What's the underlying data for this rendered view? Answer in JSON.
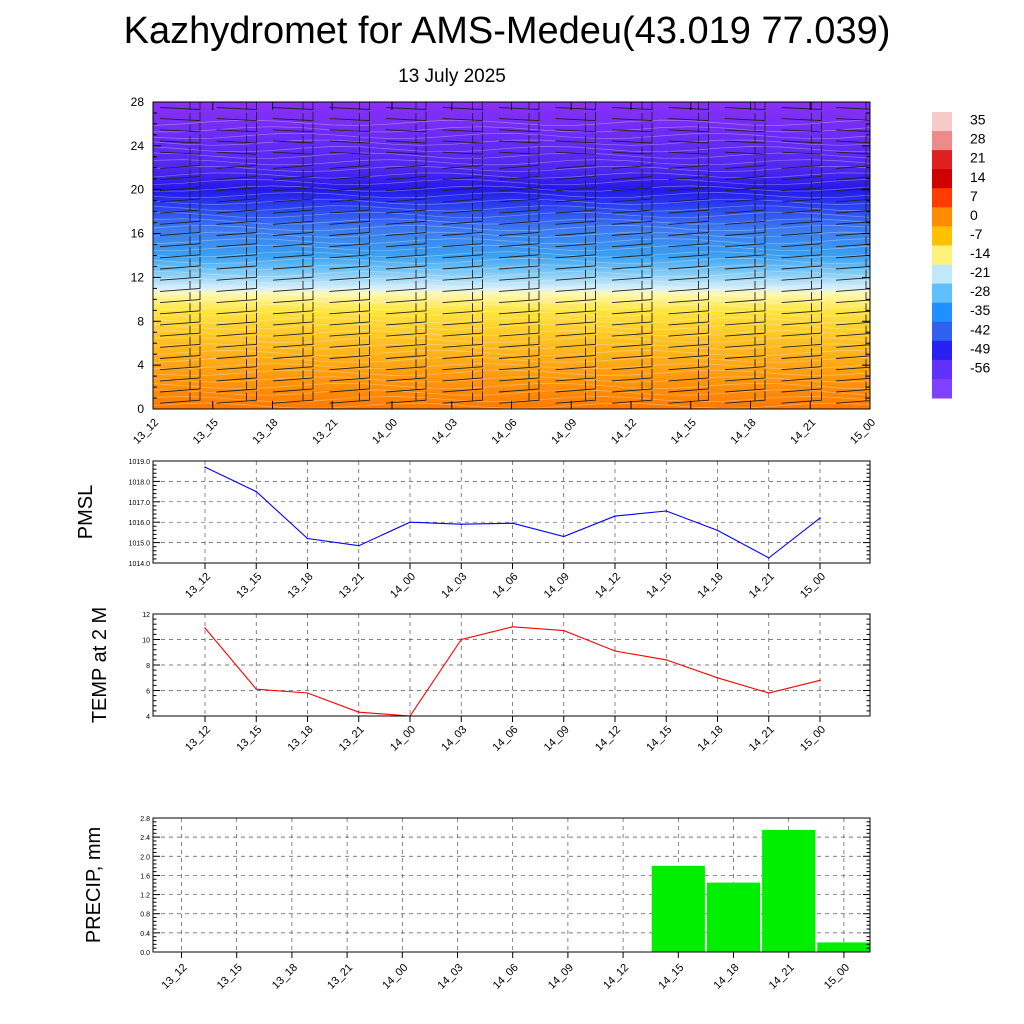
{
  "title": "Kazhydromet for AMS-Medeu(43.019 77.039)",
  "subtitle": "13 July 2025",
  "time_labels": [
    "13_12",
    "13_15",
    "13_18",
    "13_21",
    "14_00",
    "14_03",
    "14_06",
    "14_09",
    "14_12",
    "14_15",
    "14_18",
    "14_21",
    "15_00"
  ],
  "chart_data": [
    {
      "type": "heatmap",
      "description_key": "altitude-time cross-section",
      "x": [
        "13_12",
        "13_15",
        "13_18",
        "13_21",
        "14_00",
        "14_03",
        "14_06",
        "14_09",
        "14_12",
        "14_15",
        "14_18",
        "14_21",
        "15_00"
      ],
      "y_ticks": [
        0,
        4,
        8,
        12,
        16,
        20,
        24,
        28
      ],
      "ylim": [
        0,
        28
      ],
      "colorbar_labels": [
        "35",
        "28",
        "21",
        "14",
        "7",
        "0",
        "-7",
        "-14",
        "-21",
        "-28",
        "-35",
        "-42",
        "-49",
        "-56"
      ],
      "colorbar_colors": [
        "#f7c9c9",
        "#f08a8a",
        "#e02020",
        "#d00000",
        "#ff3c00",
        "#ff8c00",
        "#ffc000",
        "#fff27a",
        "#c0e8f8",
        "#60c0ff",
        "#2090ff",
        "#3060f0",
        "#2820f0",
        "#6030ff",
        "#8040ff"
      ],
      "vertical_profile": [
        {
          "h": 0,
          "color": "#ff7a00"
        },
        {
          "h": 3,
          "color": "#ff9a10"
        },
        {
          "h": 6,
          "color": "#ffbe20"
        },
        {
          "h": 9,
          "color": "#ffe640"
        },
        {
          "h": 10.5,
          "color": "#fff8b0"
        },
        {
          "h": 11,
          "color": "#d8f0fa"
        },
        {
          "h": 12.5,
          "color": "#7cc8f5"
        },
        {
          "h": 14,
          "color": "#3aa0f0"
        },
        {
          "h": 16.5,
          "color": "#3c78f0"
        },
        {
          "h": 18.5,
          "color": "#2a40f0"
        },
        {
          "h": 20,
          "color": "#2418e8"
        },
        {
          "h": 22,
          "color": "#5028f0"
        },
        {
          "h": 28,
          "color": "#8a30f8"
        }
      ]
    },
    {
      "type": "line",
      "ylabel": "PMSL",
      "x": [
        "13_12",
        "13_15",
        "13_18",
        "13_21",
        "14_00",
        "14_03",
        "14_06",
        "14_09",
        "14_12",
        "14_15",
        "14_18",
        "14_21",
        "15_00"
      ],
      "series": [
        {
          "values": [
            1018.7,
            1017.5,
            1015.2,
            1014.85,
            1016.0,
            1015.9,
            1015.95,
            1015.3,
            1016.3,
            1016.55,
            1015.6,
            1014.25,
            1016.2
          ],
          "color": "#0000ff"
        }
      ],
      "ylim": [
        1014.0,
        1019.0
      ],
      "y_ticks": [
        "1014.0",
        "1015.0",
        "1016.0",
        "1017.0",
        "1018.0",
        "1019.0"
      ],
      "grid": true
    },
    {
      "type": "line",
      "ylabel": "TEMP at 2 M",
      "x": [
        "13_12",
        "13_15",
        "13_18",
        "13_21",
        "14_00",
        "14_03",
        "14_06",
        "14_09",
        "14_12",
        "14_15",
        "14_18",
        "14_21",
        "15_00"
      ],
      "series": [
        {
          "values": [
            10.9,
            6.1,
            5.8,
            4.3,
            4.0,
            10.0,
            11.0,
            10.7,
            9.1,
            8.4,
            7.0,
            5.8,
            6.8
          ],
          "color": "#ff0000"
        }
      ],
      "ylim": [
        4,
        12
      ],
      "y_ticks": [
        "4",
        "6",
        "8",
        "10",
        "12"
      ],
      "grid": true
    },
    {
      "type": "bar",
      "ylabel": "PRECIP, mm",
      "categories": [
        "13_12",
        "13_15",
        "13_18",
        "13_21",
        "14_00",
        "14_03",
        "14_06",
        "14_09",
        "14_12",
        "14_15",
        "14_18",
        "14_21",
        "15_00"
      ],
      "values": [
        0,
        0,
        0,
        0,
        0,
        0,
        0,
        0,
        0,
        1.8,
        1.45,
        2.55,
        0.2
      ],
      "color": "#00ee00",
      "ylim": [
        0,
        2.8
      ],
      "y_ticks": [
        "0.0",
        "0.4",
        "0.8",
        "1.2",
        "1.6",
        "2.0",
        "2.4",
        "2.8"
      ],
      "grid": true
    }
  ]
}
